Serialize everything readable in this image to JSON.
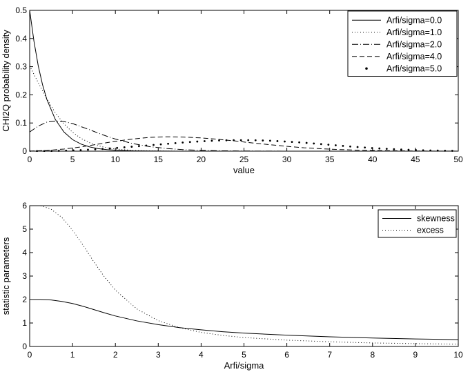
{
  "chart_data": [
    {
      "type": "line",
      "xlabel": "value",
      "ylabel": "CHI2Q probability density",
      "xlim": [
        0,
        50
      ],
      "ylim": [
        0,
        0.5
      ],
      "xticks": [
        "0",
        "5",
        "10",
        "15",
        "20",
        "25",
        "30",
        "35",
        "40",
        "45",
        "50"
      ],
      "yticks": [
        "0",
        "0.1",
        "0.2",
        "0.3",
        "0.4",
        "0.5"
      ],
      "grid": false,
      "legend_position": "top-right",
      "series": [
        {
          "name": "Arfi/sigma=0.0",
          "style": "solid",
          "x": [
            0,
            0.5,
            1,
            1.5,
            2,
            3,
            4,
            5,
            6,
            7,
            8,
            9,
            10,
            12,
            14,
            16,
            20,
            30,
            40,
            50
          ],
          "y": [
            0.5,
            0.39,
            0.303,
            0.236,
            0.184,
            0.112,
            0.068,
            0.041,
            0.025,
            0.015,
            0.009,
            0.0056,
            0.0034,
            0.0012,
            0.0005,
            0.0002,
            0.0,
            0.0,
            0.0,
            0.0
          ]
        },
        {
          "name": "Arfi/sigma=1.0",
          "style": "dotted",
          "x": [
            0,
            1,
            2,
            3,
            4,
            5,
            6,
            7,
            8,
            9,
            10,
            12,
            14,
            16,
            18,
            20,
            25,
            30,
            40,
            50
          ],
          "y": [
            0.303,
            0.243,
            0.186,
            0.136,
            0.097,
            0.067,
            0.045,
            0.03,
            0.019,
            0.012,
            0.0075,
            0.0029,
            0.0011,
            0.0004,
            0.0002,
            0.0001,
            0.0,
            0.0,
            0.0,
            0.0
          ]
        },
        {
          "name": "Arfi/sigma=2.0",
          "style": "dashdot",
          "x": [
            0,
            1,
            2,
            3,
            4,
            5,
            6,
            7,
            8,
            9,
            10,
            12,
            14,
            16,
            18,
            20,
            22,
            24,
            27,
            30,
            35,
            40,
            50
          ],
          "y": [
            0.068,
            0.089,
            0.103,
            0.107,
            0.105,
            0.098,
            0.087,
            0.076,
            0.064,
            0.053,
            0.043,
            0.027,
            0.016,
            0.0093,
            0.0052,
            0.0028,
            0.0015,
            0.0008,
            0.0003,
            0.0001,
            0.0,
            0.0,
            0.0
          ]
        },
        {
          "name": "Arfi/sigma=4.0",
          "style": "dashed",
          "x": [
            0,
            2,
            4,
            6,
            8,
            10,
            12,
            14,
            16,
            18,
            20,
            22,
            24,
            26,
            28,
            30,
            32,
            34,
            36,
            38,
            40,
            45,
            50
          ],
          "y": [
            0.0003,
            0.0025,
            0.0075,
            0.015,
            0.025,
            0.035,
            0.043,
            0.049,
            0.051,
            0.05,
            0.047,
            0.042,
            0.036,
            0.029,
            0.023,
            0.017,
            0.012,
            0.0085,
            0.0058,
            0.0038,
            0.0024,
            0.0006,
            0.0001
          ]
        },
        {
          "name": "Arfi/sigma=5.0",
          "style": "dots",
          "x": [
            0,
            2,
            4,
            6,
            8,
            10,
            12,
            14,
            16,
            18,
            20,
            22,
            24,
            26,
            28,
            30,
            32,
            34,
            36,
            38,
            40,
            42,
            44,
            46,
            48,
            50
          ],
          "y": [
            0.0,
            0.0004,
            0.0016,
            0.0038,
            0.007,
            0.011,
            0.016,
            0.021,
            0.026,
            0.031,
            0.035,
            0.038,
            0.039,
            0.039,
            0.037,
            0.034,
            0.03,
            0.025,
            0.02,
            0.015,
            0.011,
            0.0076,
            0.0049,
            0.003,
            0.0017,
            0.0009
          ]
        }
      ]
    },
    {
      "type": "line",
      "xlabel": "Arfi/sigma",
      "ylabel": "statistic parameters",
      "xlim": [
        0,
        10
      ],
      "ylim": [
        0,
        6
      ],
      "xticks": [
        "0",
        "1",
        "2",
        "3",
        "4",
        "5",
        "6",
        "7",
        "8",
        "9",
        "10"
      ],
      "yticks": [
        "0",
        "1",
        "2",
        "3",
        "4",
        "5",
        "6"
      ],
      "grid": false,
      "legend_position": "top-right",
      "series": [
        {
          "name": "skewness",
          "style": "solid",
          "x": [
            0,
            0.25,
            0.5,
            0.75,
            1,
            1.25,
            1.5,
            1.75,
            2,
            2.5,
            3,
            3.5,
            4,
            4.5,
            5,
            6,
            7,
            8,
            9,
            10
          ],
          "y": [
            2.0,
            2.0,
            1.98,
            1.92,
            1.83,
            1.71,
            1.57,
            1.43,
            1.3,
            1.09,
            0.93,
            0.8,
            0.71,
            0.63,
            0.57,
            0.48,
            0.41,
            0.36,
            0.32,
            0.29
          ]
        },
        {
          "name": "excess",
          "style": "dotted",
          "x": [
            0,
            0.25,
            0.5,
            0.75,
            1,
            1.25,
            1.5,
            1.75,
            2,
            2.5,
            3,
            3.5,
            4,
            4.5,
            5,
            6,
            7,
            8,
            9,
            10
          ],
          "y": [
            6.0,
            6.0,
            5.85,
            5.5,
            4.95,
            4.3,
            3.6,
            2.95,
            2.4,
            1.6,
            1.1,
            0.8,
            0.6,
            0.47,
            0.38,
            0.27,
            0.2,
            0.15,
            0.12,
            0.1
          ]
        }
      ]
    }
  ]
}
